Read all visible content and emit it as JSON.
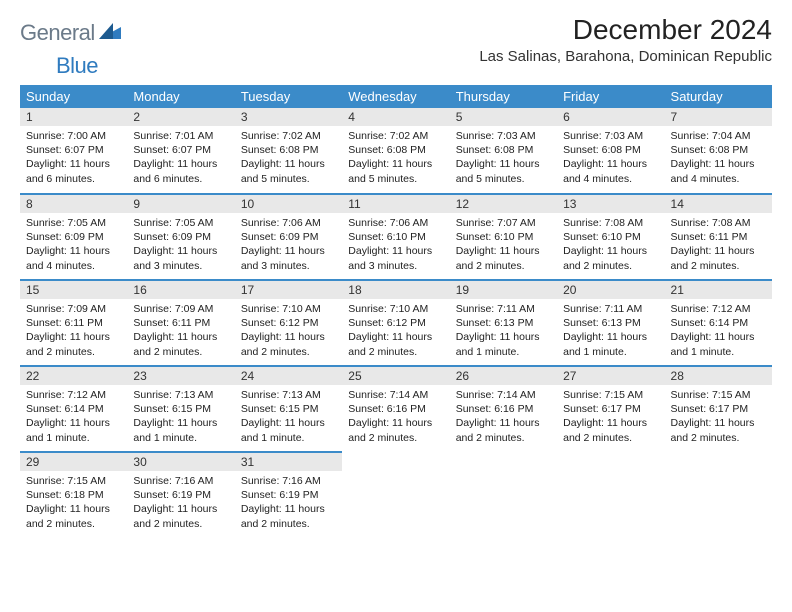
{
  "logo": {
    "text1": "General",
    "text2": "Blue"
  },
  "title": "December 2024",
  "subtitle": "Las Salinas, Barahona, Dominican Republic",
  "colors": {
    "header_bg": "#3b8bc9",
    "header_text": "#ffffff",
    "daynum_bg": "#e8e8e8",
    "row_sep": "#3b8bc9",
    "logo_gray": "#6b7a89",
    "logo_blue": "#2f7bbf"
  },
  "days_of_week": [
    "Sunday",
    "Monday",
    "Tuesday",
    "Wednesday",
    "Thursday",
    "Friday",
    "Saturday"
  ],
  "weeks": [
    [
      {
        "n": "1",
        "sunrise": "7:00 AM",
        "sunset": "6:07 PM",
        "daylight": "11 hours and 6 minutes."
      },
      {
        "n": "2",
        "sunrise": "7:01 AM",
        "sunset": "6:07 PM",
        "daylight": "11 hours and 6 minutes."
      },
      {
        "n": "3",
        "sunrise": "7:02 AM",
        "sunset": "6:08 PM",
        "daylight": "11 hours and 5 minutes."
      },
      {
        "n": "4",
        "sunrise": "7:02 AM",
        "sunset": "6:08 PM",
        "daylight": "11 hours and 5 minutes."
      },
      {
        "n": "5",
        "sunrise": "7:03 AM",
        "sunset": "6:08 PM",
        "daylight": "11 hours and 5 minutes."
      },
      {
        "n": "6",
        "sunrise": "7:03 AM",
        "sunset": "6:08 PM",
        "daylight": "11 hours and 4 minutes."
      },
      {
        "n": "7",
        "sunrise": "7:04 AM",
        "sunset": "6:08 PM",
        "daylight": "11 hours and 4 minutes."
      }
    ],
    [
      {
        "n": "8",
        "sunrise": "7:05 AM",
        "sunset": "6:09 PM",
        "daylight": "11 hours and 4 minutes."
      },
      {
        "n": "9",
        "sunrise": "7:05 AM",
        "sunset": "6:09 PM",
        "daylight": "11 hours and 3 minutes."
      },
      {
        "n": "10",
        "sunrise": "7:06 AM",
        "sunset": "6:09 PM",
        "daylight": "11 hours and 3 minutes."
      },
      {
        "n": "11",
        "sunrise": "7:06 AM",
        "sunset": "6:10 PM",
        "daylight": "11 hours and 3 minutes."
      },
      {
        "n": "12",
        "sunrise": "7:07 AM",
        "sunset": "6:10 PM",
        "daylight": "11 hours and 2 minutes."
      },
      {
        "n": "13",
        "sunrise": "7:08 AM",
        "sunset": "6:10 PM",
        "daylight": "11 hours and 2 minutes."
      },
      {
        "n": "14",
        "sunrise": "7:08 AM",
        "sunset": "6:11 PM",
        "daylight": "11 hours and 2 minutes."
      }
    ],
    [
      {
        "n": "15",
        "sunrise": "7:09 AM",
        "sunset": "6:11 PM",
        "daylight": "11 hours and 2 minutes."
      },
      {
        "n": "16",
        "sunrise": "7:09 AM",
        "sunset": "6:11 PM",
        "daylight": "11 hours and 2 minutes."
      },
      {
        "n": "17",
        "sunrise": "7:10 AM",
        "sunset": "6:12 PM",
        "daylight": "11 hours and 2 minutes."
      },
      {
        "n": "18",
        "sunrise": "7:10 AM",
        "sunset": "6:12 PM",
        "daylight": "11 hours and 2 minutes."
      },
      {
        "n": "19",
        "sunrise": "7:11 AM",
        "sunset": "6:13 PM",
        "daylight": "11 hours and 1 minute."
      },
      {
        "n": "20",
        "sunrise": "7:11 AM",
        "sunset": "6:13 PM",
        "daylight": "11 hours and 1 minute."
      },
      {
        "n": "21",
        "sunrise": "7:12 AM",
        "sunset": "6:14 PM",
        "daylight": "11 hours and 1 minute."
      }
    ],
    [
      {
        "n": "22",
        "sunrise": "7:12 AM",
        "sunset": "6:14 PM",
        "daylight": "11 hours and 1 minute."
      },
      {
        "n": "23",
        "sunrise": "7:13 AM",
        "sunset": "6:15 PM",
        "daylight": "11 hours and 1 minute."
      },
      {
        "n": "24",
        "sunrise": "7:13 AM",
        "sunset": "6:15 PM",
        "daylight": "11 hours and 1 minute."
      },
      {
        "n": "25",
        "sunrise": "7:14 AM",
        "sunset": "6:16 PM",
        "daylight": "11 hours and 2 minutes."
      },
      {
        "n": "26",
        "sunrise": "7:14 AM",
        "sunset": "6:16 PM",
        "daylight": "11 hours and 2 minutes."
      },
      {
        "n": "27",
        "sunrise": "7:15 AM",
        "sunset": "6:17 PM",
        "daylight": "11 hours and 2 minutes."
      },
      {
        "n": "28",
        "sunrise": "7:15 AM",
        "sunset": "6:17 PM",
        "daylight": "11 hours and 2 minutes."
      }
    ],
    [
      {
        "n": "29",
        "sunrise": "7:15 AM",
        "sunset": "6:18 PM",
        "daylight": "11 hours and 2 minutes."
      },
      {
        "n": "30",
        "sunrise": "7:16 AM",
        "sunset": "6:19 PM",
        "daylight": "11 hours and 2 minutes."
      },
      {
        "n": "31",
        "sunrise": "7:16 AM",
        "sunset": "6:19 PM",
        "daylight": "11 hours and 2 minutes."
      },
      null,
      null,
      null,
      null
    ]
  ]
}
